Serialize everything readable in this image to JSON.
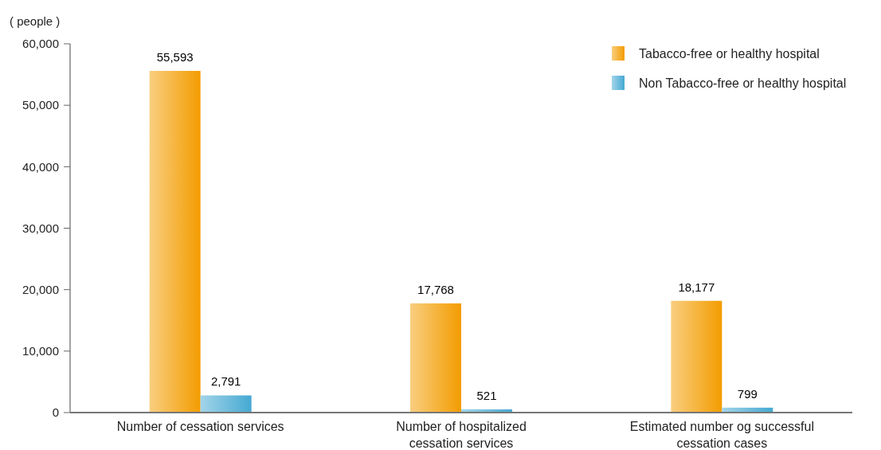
{
  "chart_data": {
    "type": "bar",
    "ylabel": "( people )",
    "categories": [
      "Number of cessation services",
      "Number of hospitalized\ncessation services",
      "Estimated number og successful\ncessation cases"
    ],
    "series": [
      {
        "name": "Tabacco-free or healthy hospital",
        "color": "#f39c00",
        "values": [
          55593,
          17768,
          18177
        ],
        "value_labels": [
          "55,593",
          "17,768",
          "18,177"
        ]
      },
      {
        "name": "Non Tabacco-free or healthy hospital",
        "color": "#45a9d2",
        "values": [
          2791,
          521,
          799
        ],
        "value_labels": [
          "2,791",
          "521",
          "799"
        ]
      }
    ],
    "ylim": [
      0,
      60000
    ],
    "yticks": [
      {
        "value": 0,
        "label": "0"
      },
      {
        "value": 10000,
        "label": "10,000"
      },
      {
        "value": 20000,
        "label": "20,000"
      },
      {
        "value": 30000,
        "label": "30,000"
      },
      {
        "value": 40000,
        "label": "40,000"
      },
      {
        "value": 50000,
        "label": "50,000"
      },
      {
        "value": 60000,
        "label": "60,000"
      }
    ],
    "legend": "top right",
    "grid": false
  }
}
